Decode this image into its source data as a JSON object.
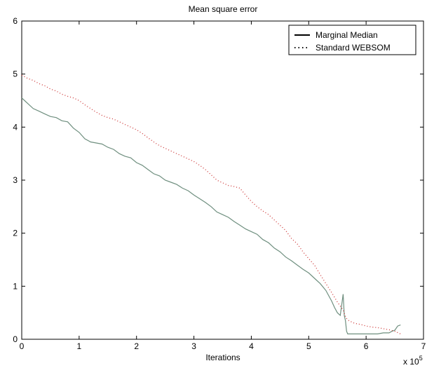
{
  "chart_data": {
    "type": "line",
    "title": "Mean square error",
    "xlabel": "Iterations",
    "ylabel": "",
    "x_multiplier_label": "x 10",
    "x_multiplier_exp": "5",
    "xlim": [
      0,
      7
    ],
    "ylim": [
      0,
      6
    ],
    "xticks": [
      "0",
      "1",
      "2",
      "3",
      "4",
      "5",
      "6",
      "7"
    ],
    "yticks": [
      "0",
      "1",
      "2",
      "3",
      "4",
      "5",
      "6"
    ],
    "grid": false,
    "legend_position": "top-right",
    "series": [
      {
        "name": "Marginal Median",
        "style": "solid",
        "color": "#6f8f7f",
        "x": [
          0,
          0.05,
          0.1,
          0.2,
          0.3,
          0.4,
          0.5,
          0.6,
          0.7,
          0.8,
          0.9,
          1.0,
          1.1,
          1.2,
          1.3,
          1.4,
          1.5,
          1.6,
          1.7,
          1.8,
          1.9,
          2.0,
          2.1,
          2.2,
          2.3,
          2.4,
          2.5,
          2.6,
          2.7,
          2.8,
          2.9,
          3.0,
          3.1,
          3.2,
          3.3,
          3.4,
          3.5,
          3.6,
          3.7,
          3.8,
          3.9,
          4.0,
          4.1,
          4.2,
          4.3,
          4.4,
          4.5,
          4.6,
          4.7,
          4.8,
          4.9,
          5.0,
          5.1,
          5.2,
          5.3,
          5.35,
          5.4,
          5.45,
          5.5,
          5.55,
          5.6,
          5.62,
          5.64,
          5.66,
          5.68,
          5.7,
          5.8,
          5.9,
          6.0,
          6.1,
          6.2,
          6.3,
          6.4,
          6.45,
          6.5,
          6.55,
          6.6
        ],
        "y": [
          4.55,
          4.5,
          4.45,
          4.35,
          4.3,
          4.25,
          4.2,
          4.18,
          4.12,
          4.1,
          3.98,
          3.9,
          3.78,
          3.72,
          3.7,
          3.68,
          3.62,
          3.58,
          3.5,
          3.45,
          3.42,
          3.33,
          3.28,
          3.2,
          3.12,
          3.08,
          3.0,
          2.96,
          2.92,
          2.85,
          2.8,
          2.72,
          2.65,
          2.58,
          2.5,
          2.4,
          2.35,
          2.3,
          2.22,
          2.15,
          2.08,
          2.03,
          1.98,
          1.88,
          1.82,
          1.72,
          1.65,
          1.55,
          1.48,
          1.4,
          1.32,
          1.25,
          1.15,
          1.05,
          0.92,
          0.82,
          0.72,
          0.6,
          0.5,
          0.45,
          0.85,
          0.45,
          0.35,
          0.15,
          0.1,
          0.1,
          0.1,
          0.1,
          0.1,
          0.1,
          0.1,
          0.12,
          0.12,
          0.15,
          0.17,
          0.25,
          0.27
        ]
      },
      {
        "name": "Standard WEBSOM",
        "style": "dotted",
        "color": "#cc3333",
        "x": [
          0,
          0.1,
          0.2,
          0.3,
          0.4,
          0.5,
          0.6,
          0.7,
          0.8,
          0.9,
          1.0,
          1.1,
          1.2,
          1.3,
          1.4,
          1.5,
          1.6,
          1.7,
          1.8,
          1.9,
          2.0,
          2.1,
          2.2,
          2.3,
          2.4,
          2.5,
          2.6,
          2.7,
          2.8,
          2.9,
          3.0,
          3.1,
          3.2,
          3.3,
          3.4,
          3.5,
          3.6,
          3.7,
          3.8,
          3.9,
          4.0,
          4.1,
          4.2,
          4.3,
          4.4,
          4.5,
          4.6,
          4.7,
          4.8,
          4.9,
          5.0,
          5.1,
          5.2,
          5.3,
          5.4,
          5.5,
          5.6,
          5.65,
          5.7,
          5.8,
          5.9,
          6.0,
          6.1,
          6.2,
          6.3,
          6.4,
          6.5,
          6.6
        ],
        "y": [
          4.98,
          4.92,
          4.88,
          4.82,
          4.78,
          4.72,
          4.68,
          4.62,
          4.58,
          4.55,
          4.5,
          4.42,
          4.35,
          4.28,
          4.22,
          4.18,
          4.15,
          4.1,
          4.05,
          4.0,
          3.95,
          3.88,
          3.8,
          3.72,
          3.65,
          3.6,
          3.55,
          3.5,
          3.45,
          3.4,
          3.35,
          3.28,
          3.2,
          3.1,
          3.0,
          2.95,
          2.9,
          2.88,
          2.85,
          2.72,
          2.6,
          2.5,
          2.42,
          2.35,
          2.25,
          2.15,
          2.05,
          1.9,
          1.8,
          1.65,
          1.52,
          1.4,
          1.22,
          1.05,
          0.88,
          0.7,
          0.55,
          0.4,
          0.35,
          0.3,
          0.28,
          0.25,
          0.23,
          0.22,
          0.2,
          0.18,
          0.15,
          0.1
        ]
      }
    ]
  }
}
